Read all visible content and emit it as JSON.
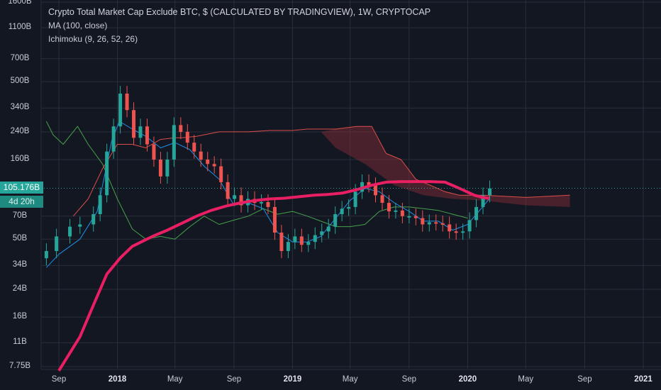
{
  "legend": {
    "title": "Crypto Total Market Cap Exclude BTC, $ (CALCULATED BY TRADINGVIEW), 1W, CRYPTOCAP",
    "ma": "MA (100, close)",
    "ichimoku": "Ichimoku (9, 26, 52, 26)"
  },
  "badges": {
    "price": "105.176B",
    "timer": "4d 20h"
  },
  "colors": {
    "background": "#131722",
    "up": "#26a69a",
    "down": "#ef5350",
    "ma": "#e91e63",
    "conversion": "#2196f3",
    "lagging": "#4caf50",
    "spanB": "#ef5350",
    "cloud": "#8b2e3a",
    "grid": "#2a2e39"
  },
  "chart_data": {
    "type": "candlestick",
    "scale": "log",
    "title": "Crypto Total Market Cap Exclude BTC, $ (CALCULATED BY TRADINGVIEW), 1W, CRYPTOCAP",
    "y_ticks": [
      "1600B",
      "1100B",
      "700B",
      "500B",
      "340B",
      "240B",
      "160B",
      "70B",
      "50B",
      "34B",
      "24B",
      "16B",
      "11B",
      "7.75B"
    ],
    "y_tick_values": [
      1600,
      1100,
      700,
      500,
      340,
      240,
      160,
      70,
      50,
      34,
      24,
      16,
      11,
      7.75
    ],
    "x_ticks": [
      "Sep",
      "2018",
      "May",
      "Sep",
      "2019",
      "May",
      "Sep",
      "2020",
      "May",
      "Sep",
      "2021"
    ],
    "x_tick_dates": [
      "2017-09-01",
      "2018-01-01",
      "2018-05-01",
      "2018-09-01",
      "2019-01-01",
      "2019-05-01",
      "2019-09-01",
      "2020-01-01",
      "2020-05-01",
      "2020-09-01",
      "2021-01-01"
    ],
    "last_price": 105.176,
    "grid": true,
    "series": [
      {
        "name": "Price",
        "style": "candles",
        "points": [
          [
            "2017-08-06",
            42
          ],
          [
            "2017-08-27",
            52
          ],
          [
            "2017-09-24",
            60
          ],
          [
            "2017-10-15",
            62
          ],
          [
            "2017-11-12",
            72
          ],
          [
            "2017-11-26",
            95
          ],
          [
            "2017-12-10",
            180
          ],
          [
            "2017-12-24",
            260
          ],
          [
            "2018-01-07",
            420
          ],
          [
            "2018-01-21",
            330
          ],
          [
            "2018-02-04",
            220
          ],
          [
            "2018-02-18",
            260
          ],
          [
            "2018-03-04",
            200
          ],
          [
            "2018-03-18",
            160
          ],
          [
            "2018-04-01",
            125
          ],
          [
            "2018-04-15",
            160
          ],
          [
            "2018-04-29",
            265
          ],
          [
            "2018-05-13",
            240
          ],
          [
            "2018-05-27",
            205
          ],
          [
            "2018-06-10",
            180
          ],
          [
            "2018-06-24",
            160
          ],
          [
            "2018-07-08",
            150
          ],
          [
            "2018-07-22",
            145
          ],
          [
            "2018-08-05",
            115
          ],
          [
            "2018-08-19",
            90
          ],
          [
            "2018-09-02",
            95
          ],
          [
            "2018-09-16",
            82
          ],
          [
            "2018-09-30",
            90
          ],
          [
            "2018-10-14",
            85
          ],
          [
            "2018-10-28",
            86
          ],
          [
            "2018-11-11",
            80
          ],
          [
            "2018-11-25",
            55
          ],
          [
            "2018-12-09",
            42
          ],
          [
            "2018-12-23",
            48
          ],
          [
            "2019-01-06",
            52
          ],
          [
            "2019-01-20",
            46
          ],
          [
            "2019-02-03",
            48
          ],
          [
            "2019-02-17",
            53
          ],
          [
            "2019-03-03",
            56
          ],
          [
            "2019-03-17",
            60
          ],
          [
            "2019-03-31",
            72
          ],
          [
            "2019-04-14",
            78
          ],
          [
            "2019-04-28",
            80
          ],
          [
            "2019-05-12",
            100
          ],
          [
            "2019-05-26",
            115
          ],
          [
            "2019-06-09",
            110
          ],
          [
            "2019-06-23",
            95
          ],
          [
            "2019-07-07",
            85
          ],
          [
            "2019-07-21",
            75
          ],
          [
            "2019-08-04",
            76
          ],
          [
            "2019-08-18",
            70
          ],
          [
            "2019-09-01",
            70
          ],
          [
            "2019-09-15",
            68
          ],
          [
            "2019-09-29",
            62
          ],
          [
            "2019-10-13",
            64
          ],
          [
            "2019-10-27",
            63
          ],
          [
            "2019-11-10",
            62
          ],
          [
            "2019-11-24",
            56
          ],
          [
            "2019-12-08",
            55
          ],
          [
            "2019-12-22",
            56
          ],
          [
            "2020-01-05",
            66
          ],
          [
            "2020-01-19",
            80
          ],
          [
            "2020-02-02",
            95
          ],
          [
            "2020-02-16",
            105
          ]
        ]
      },
      {
        "name": "MA (100, close)",
        "style": "line",
        "points": [
          [
            "2017-09-01",
            7.3
          ],
          [
            "2017-10-15",
            12
          ],
          [
            "2017-11-15",
            20
          ],
          [
            "2017-12-10",
            30
          ],
          [
            "2018-01-07",
            38
          ],
          [
            "2018-02-01",
            45
          ],
          [
            "2018-03-15",
            52
          ],
          [
            "2018-04-15",
            57
          ],
          [
            "2018-05-15",
            63
          ],
          [
            "2018-06-15",
            70
          ],
          [
            "2018-07-15",
            76
          ],
          [
            "2018-08-15",
            81
          ],
          [
            "2018-09-15",
            85
          ],
          [
            "2018-10-15",
            88
          ],
          [
            "2018-11-15",
            90
          ],
          [
            "2018-12-15",
            91
          ],
          [
            "2019-01-15",
            93
          ],
          [
            "2019-02-15",
            95
          ],
          [
            "2019-03-15",
            96
          ],
          [
            "2019-04-15",
            98
          ],
          [
            "2019-05-15",
            103
          ],
          [
            "2019-06-15",
            110
          ],
          [
            "2019-07-15",
            115
          ],
          [
            "2019-08-15",
            116
          ],
          [
            "2019-09-15",
            116
          ],
          [
            "2019-10-15",
            116
          ],
          [
            "2019-11-15",
            115
          ],
          [
            "2019-12-15",
            105
          ],
          [
            "2020-01-15",
            95
          ],
          [
            "2020-02-01",
            92
          ],
          [
            "2020-02-15",
            91
          ]
        ]
      },
      {
        "name": "Ichimoku Conversion",
        "style": "line",
        "points": [
          [
            "2017-08-06",
            33
          ],
          [
            "2017-09-01",
            40
          ],
          [
            "2017-10-15",
            50
          ],
          [
            "2017-11-20",
            75
          ],
          [
            "2017-12-20",
            210
          ],
          [
            "2018-01-05",
            280
          ],
          [
            "2018-02-01",
            250
          ],
          [
            "2018-03-01",
            225
          ],
          [
            "2018-04-01",
            190
          ],
          [
            "2018-05-01",
            205
          ],
          [
            "2018-06-01",
            185
          ],
          [
            "2018-07-01",
            145
          ],
          [
            "2018-08-01",
            120
          ],
          [
            "2018-09-01",
            82
          ],
          [
            "2018-10-01",
            85
          ],
          [
            "2018-11-01",
            78
          ],
          [
            "2018-12-01",
            55
          ],
          [
            "2019-01-01",
            48
          ],
          [
            "2019-02-01",
            48
          ],
          [
            "2019-03-01",
            52
          ],
          [
            "2019-04-01",
            68
          ],
          [
            "2019-05-01",
            88
          ],
          [
            "2019-06-01",
            105
          ],
          [
            "2019-07-01",
            100
          ],
          [
            "2019-08-01",
            85
          ],
          [
            "2019-09-01",
            75
          ],
          [
            "2019-10-01",
            65
          ],
          [
            "2019-11-01",
            65
          ],
          [
            "2019-12-01",
            57
          ],
          [
            "2020-01-01",
            62
          ],
          [
            "2020-02-01",
            80
          ],
          [
            "2020-02-15",
            90
          ]
        ]
      },
      {
        "name": "Ichimoku Leading Span B",
        "style": "line",
        "points": [
          [
            "2017-10-01",
            70
          ],
          [
            "2017-11-01",
            90
          ],
          [
            "2017-12-01",
            140
          ],
          [
            "2018-01-01",
            200
          ],
          [
            "2018-02-01",
            200
          ],
          [
            "2018-03-01",
            190
          ],
          [
            "2018-04-01",
            215
          ],
          [
            "2018-05-01",
            220
          ],
          [
            "2018-05-15",
            220
          ],
          [
            "2018-06-15",
            225
          ],
          [
            "2018-08-01",
            240
          ],
          [
            "2018-10-01",
            240
          ],
          [
            "2018-11-15",
            245
          ],
          [
            "2019-01-01",
            245
          ],
          [
            "2019-02-01",
            250
          ],
          [
            "2019-04-01",
            250
          ],
          [
            "2019-05-15",
            260
          ],
          [
            "2019-06-15",
            260
          ],
          [
            "2019-07-15",
            175
          ],
          [
            "2019-08-15",
            160
          ],
          [
            "2019-09-15",
            120
          ],
          [
            "2019-10-15",
            110
          ],
          [
            "2019-11-15",
            100
          ],
          [
            "2019-12-15",
            95
          ],
          [
            "2020-02-01",
            95
          ],
          [
            "2020-05-01",
            92
          ],
          [
            "2020-08-01",
            95
          ]
        ]
      },
      {
        "name": "Ichimoku Lagging Span",
        "style": "line",
        "points": [
          [
            "2017-08-06",
            280
          ],
          [
            "2017-08-20",
            230
          ],
          [
            "2017-09-10",
            200
          ],
          [
            "2017-10-10",
            260
          ],
          [
            "2017-11-01",
            200
          ],
          [
            "2017-12-01",
            150
          ],
          [
            "2018-01-01",
            90
          ],
          [
            "2018-02-01",
            58
          ],
          [
            "2018-03-01",
            50
          ],
          [
            "2018-04-01",
            52
          ],
          [
            "2018-05-01",
            50
          ],
          [
            "2018-06-01",
            60
          ],
          [
            "2018-07-01",
            70
          ],
          [
            "2018-08-01",
            62
          ],
          [
            "2018-09-01",
            66
          ],
          [
            "2018-10-01",
            70
          ],
          [
            "2018-11-01",
            78
          ],
          [
            "2018-12-01",
            72
          ],
          [
            "2019-01-01",
            75
          ],
          [
            "2019-02-01",
            70
          ],
          [
            "2019-03-01",
            65
          ],
          [
            "2019-04-01",
            60
          ],
          [
            "2019-05-01",
            60
          ],
          [
            "2019-06-01",
            62
          ],
          [
            "2019-07-01",
            75
          ],
          [
            "2019-08-01",
            80
          ],
          [
            "2019-09-01",
            80
          ],
          [
            "2019-10-01",
            78
          ],
          [
            "2019-11-01",
            76
          ],
          [
            "2019-12-01",
            72
          ],
          [
            "2020-01-01",
            68
          ]
        ]
      }
    ]
  }
}
